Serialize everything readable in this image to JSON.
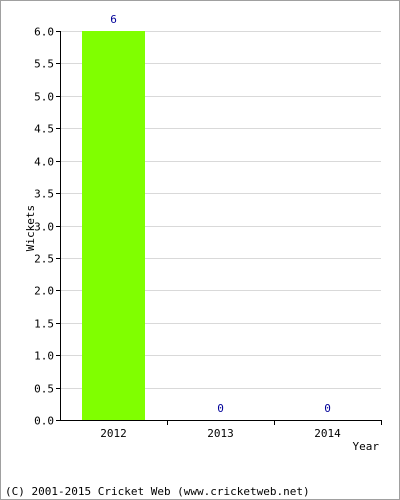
{
  "chart_data": {
    "type": "bar",
    "categories": [
      "2012",
      "2013",
      "2014"
    ],
    "values": [
      6,
      0,
      0
    ],
    "data_labels": [
      "6",
      "0",
      "0"
    ],
    "title": "",
    "xlabel": "Year",
    "ylabel": "Wickets",
    "ylim": [
      0,
      6.0
    ],
    "y_ticks": [
      "0.0",
      "0.5",
      "1.0",
      "1.5",
      "2.0",
      "2.5",
      "3.0",
      "3.5",
      "4.0",
      "4.5",
      "5.0",
      "5.5",
      "6.0"
    ],
    "grid": true,
    "legend": "none",
    "colors": {
      "bar": "#80ff00",
      "data_label": "#000099",
      "grid": "#d9d9d9",
      "axis": "#000000",
      "text": "#000000"
    }
  },
  "footer": {
    "copyright": "(C) 2001-2015 Cricket Web (www.cricketweb.net)"
  }
}
